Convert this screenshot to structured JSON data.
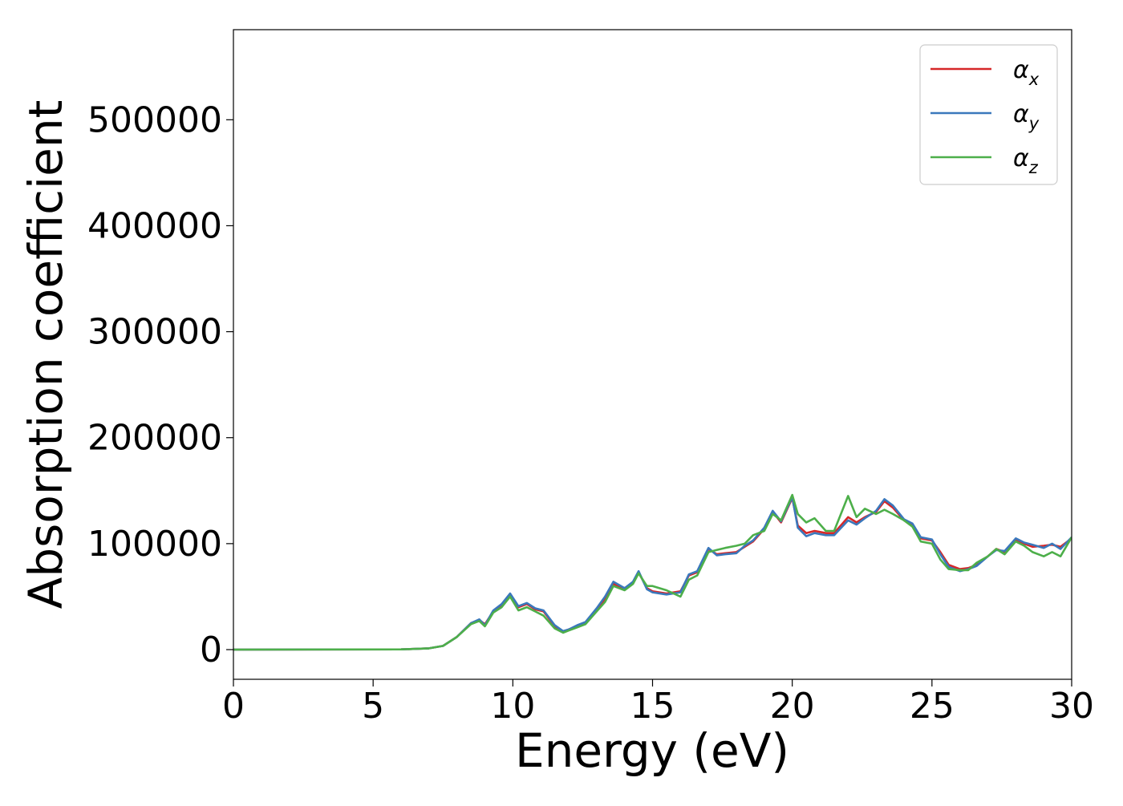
{
  "chart_data": {
    "type": "line",
    "xlabel": "Energy (eV)",
    "ylabel": "Absorption coefficient",
    "xlim": [
      0,
      30
    ],
    "ylim": [
      -28000,
      585000
    ],
    "xticks": [
      0,
      5,
      10,
      15,
      20,
      25,
      30
    ],
    "yticks": [
      0,
      100000,
      200000,
      300000,
      400000,
      500000
    ],
    "grid": false,
    "legend_position": "top-right",
    "series": [
      {
        "name": "α",
        "subscript": "x",
        "color": "#d62728",
        "x": [
          0,
          6,
          7,
          7.5,
          8,
          8.5,
          8.8,
          9,
          9.3,
          9.6,
          9.9,
          10.2,
          10.5,
          10.8,
          11.1,
          11.5,
          11.8,
          12,
          12.3,
          12.6,
          13,
          13.3,
          13.6,
          14,
          14.3,
          14.5,
          14.8,
          15,
          15.5,
          16,
          16.3,
          16.6,
          17,
          17.3,
          17.6,
          18,
          18.3,
          18.6,
          19,
          19.3,
          19.6,
          20,
          20.2,
          20.5,
          20.8,
          21.2,
          21.5,
          22,
          22.3,
          22.6,
          23,
          23.3,
          23.6,
          24,
          24.3,
          24.6,
          25,
          25.3,
          25.6,
          26,
          26.3,
          26.6,
          27,
          27.3,
          27.6,
          28,
          28.3,
          28.6,
          29,
          29.3,
          29.6,
          30
        ],
        "y": [
          0,
          200,
          1200,
          3500,
          12000,
          25000,
          28000,
          24000,
          36000,
          42000,
          52000,
          40000,
          43000,
          38000,
          36000,
          22000,
          17000,
          19000,
          22000,
          25000,
          38000,
          48000,
          62000,
          58000,
          63000,
          73000,
          58000,
          55000,
          53000,
          55000,
          70000,
          73000,
          95000,
          90000,
          91000,
          92000,
          97000,
          102000,
          114000,
          130000,
          120000,
          143000,
          117000,
          110000,
          112000,
          110000,
          110000,
          125000,
          120000,
          125000,
          130000,
          140000,
          134000,
          122000,
          118000,
          105000,
          103000,
          92000,
          80000,
          76000,
          77000,
          80000,
          88000,
          95000,
          92000,
          104000,
          100000,
          97000,
          98000,
          99000,
          97000,
          105000
        ]
      },
      {
        "name": "α",
        "subscript": "y",
        "color": "#3a78bc",
        "x": [
          0,
          6,
          7,
          7.5,
          8,
          8.5,
          8.8,
          9,
          9.3,
          9.6,
          9.9,
          10.2,
          10.5,
          10.8,
          11.1,
          11.5,
          11.8,
          12,
          12.3,
          12.6,
          13,
          13.3,
          13.6,
          14,
          14.3,
          14.5,
          14.8,
          15,
          15.5,
          16,
          16.3,
          16.6,
          17,
          17.3,
          17.6,
          18,
          18.3,
          18.6,
          19,
          19.3,
          19.6,
          20,
          20.2,
          20.5,
          20.8,
          21.2,
          21.5,
          22,
          22.3,
          22.6,
          23,
          23.3,
          23.6,
          24,
          24.3,
          24.6,
          25,
          25.3,
          25.6,
          26,
          26.3,
          26.6,
          27,
          27.3,
          27.6,
          28,
          28.3,
          28.6,
          29,
          29.3,
          29.6,
          30
        ],
        "y": [
          0,
          200,
          1200,
          3500,
          12000,
          25000,
          28500,
          23000,
          37000,
          43000,
          53000,
          41000,
          44000,
          39000,
          37000,
          23000,
          17500,
          19000,
          23000,
          26000,
          39000,
          50000,
          64000,
          58000,
          64000,
          74000,
          57000,
          54000,
          52000,
          54000,
          71000,
          74000,
          96000,
          89000,
          90000,
          91000,
          98000,
          103000,
          115000,
          131000,
          121000,
          144000,
          115000,
          107000,
          110000,
          108000,
          108000,
          122000,
          118000,
          124000,
          131000,
          142000,
          136000,
          123000,
          119000,
          106000,
          104000,
          90000,
          78000,
          74000,
          76000,
          79000,
          88000,
          94000,
          93000,
          105000,
          101000,
          99000,
          96000,
          100000,
          95000,
          106000
        ]
      },
      {
        "name": "α",
        "subscript": "z",
        "color": "#4daf4a",
        "x": [
          0,
          6,
          7,
          7.5,
          8,
          8.5,
          8.8,
          9,
          9.3,
          9.6,
          9.9,
          10.2,
          10.5,
          10.8,
          11.1,
          11.5,
          11.8,
          12,
          12.3,
          12.6,
          13,
          13.3,
          13.6,
          14,
          14.3,
          14.5,
          14.8,
          15,
          15.5,
          16,
          16.3,
          16.6,
          17,
          17.3,
          17.6,
          18,
          18.3,
          18.6,
          19,
          19.3,
          19.6,
          20,
          20.2,
          20.5,
          20.8,
          21.2,
          21.5,
          22,
          22.3,
          22.6,
          23,
          23.3,
          23.6,
          24,
          24.3,
          24.6,
          25,
          25.3,
          25.6,
          26,
          26.3,
          26.6,
          27,
          27.3,
          27.6,
          28,
          28.3,
          28.6,
          29,
          29.3,
          29.6,
          30
        ],
        "y": [
          0,
          200,
          1200,
          3500,
          12000,
          24000,
          27000,
          22000,
          35000,
          40000,
          50000,
          37000,
          40000,
          36000,
          32000,
          20000,
          16000,
          18000,
          21000,
          24000,
          36000,
          45000,
          60000,
          56000,
          62000,
          72000,
          60000,
          60000,
          56000,
          50000,
          66000,
          70000,
          92000,
          94000,
          96000,
          98000,
          100000,
          108000,
          112000,
          128000,
          122000,
          146000,
          128000,
          120000,
          124000,
          112000,
          112000,
          145000,
          125000,
          133000,
          128000,
          132000,
          128000,
          122000,
          116000,
          102000,
          100000,
          85000,
          76000,
          75000,
          75000,
          82000,
          88000,
          95000,
          90000,
          102000,
          98000,
          92000,
          88000,
          92000,
          88000,
          106000
        ]
      }
    ]
  }
}
